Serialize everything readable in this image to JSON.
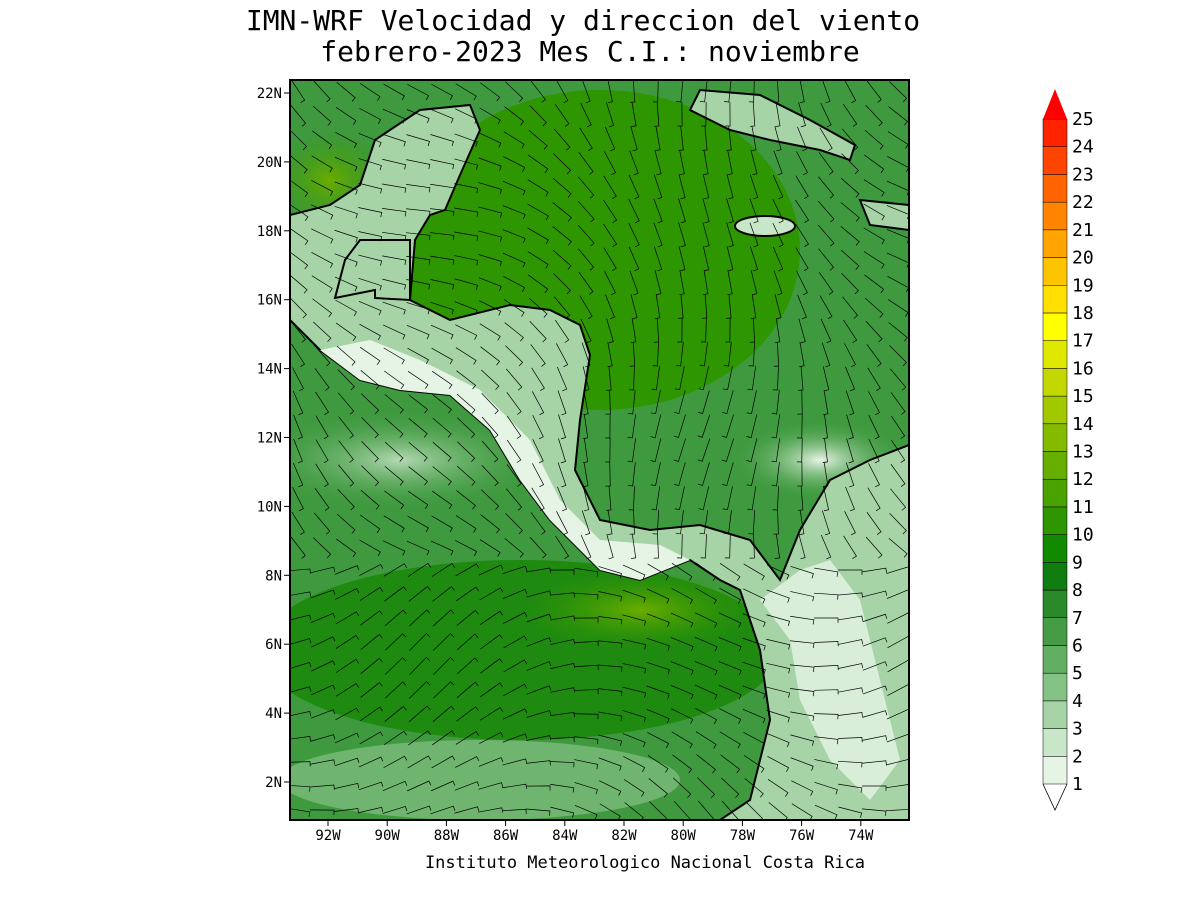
{
  "map": {
    "title": [
      "IMN-WRF Velocidad y direccion del viento",
      "febrero-2023 Mes C.I.: noviembre"
    ],
    "lat_labels": [
      {
        "value": 22,
        "label": "22N"
      },
      {
        "value": 20,
        "label": "20N"
      },
      {
        "value": 18,
        "label": "18N"
      },
      {
        "value": 16,
        "label": "16N"
      },
      {
        "value": 14,
        "label": "14N"
      },
      {
        "value": 12,
        "label": "12N"
      },
      {
        "value": 10,
        "label": "10N"
      },
      {
        "value": 8,
        "label": "8N"
      },
      {
        "value": 6,
        "label": "6N"
      },
      {
        "value": 4,
        "label": "4N"
      },
      {
        "value": 2,
        "label": "2N"
      }
    ],
    "lon_labels": [
      {
        "value": -92,
        "label": "92W"
      },
      {
        "value": -90,
        "label": "90W"
      },
      {
        "value": -88,
        "label": "88W"
      },
      {
        "value": -86,
        "label": "86W"
      },
      {
        "value": -84,
        "label": "84W"
      },
      {
        "value": -82,
        "label": "82W"
      },
      {
        "value": -80,
        "label": "80W"
      },
      {
        "value": -78,
        "label": "78W"
      },
      {
        "value": -76,
        "label": "76W"
      },
      {
        "value": -74,
        "label": "74W"
      }
    ],
    "colorbar": {
      "levels": [
        1,
        2,
        3,
        4,
        5,
        6,
        7,
        8,
        9,
        10,
        11,
        12,
        13,
        14,
        15,
        16,
        17,
        18,
        19,
        20,
        21,
        22,
        23,
        24,
        25
      ],
      "colors": [
        "#e6f4e6",
        "#c8e6c8",
        "#a6d4a6",
        "#84c184",
        "#62ae62",
        "#459c45",
        "#2a8a2a",
        "#0f7d0f",
        "#118a00",
        "#2e9600",
        "#4aa200",
        "#66ae00",
        "#84ba00",
        "#a2c800",
        "#c2d800",
        "#e0e800",
        "#ffff00",
        "#ffe000",
        "#ffc400",
        "#ffa400",
        "#ff8400",
        "#ff6400",
        "#ff4400",
        "#ff2400",
        "#ff0000"
      ]
    },
    "footer": "Instituto Meteorologico Nacional Costa Rica"
  }
}
